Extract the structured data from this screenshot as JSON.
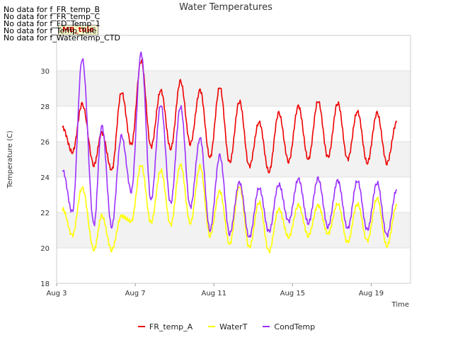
{
  "no_data_messages": [
    "No data for f_FR_temp_B",
    "No data for f_FR_temp_C",
    "No data for f_FD_Temp_1",
    "No data for f_Temp_Tule",
    "No data for f_WaterTemp_CTD"
  ],
  "annotation": "MB_tule",
  "chart_data": {
    "type": "line",
    "title": "Water Temperatures",
    "xlabel": "Time",
    "ylabel": "Temperature (C)",
    "xlim": [
      3,
      21
    ],
    "ylim": [
      18,
      32
    ],
    "x_ticks": [
      3,
      7,
      11,
      15,
      19
    ],
    "x_tick_labels": [
      "Aug 3",
      "Aug 7",
      "Aug 11",
      "Aug 15",
      "Aug 19"
    ],
    "y_ticks": [
      18,
      20,
      22,
      24,
      26,
      28,
      30
    ],
    "y_tick_labels": [
      "18",
      "20",
      "22",
      "24",
      "26",
      "28",
      "30"
    ],
    "grid": true,
    "legend_position": "bottom-center",
    "series": [
      {
        "name": "FR_temp_A",
        "color": "#ee0000",
        "x": [
          3.3,
          3.8,
          4.3,
          4.9,
          5.3,
          5.8,
          6.3,
          6.8,
          7.3,
          7.8,
          8.3,
          8.8,
          9.3,
          9.8,
          10.3,
          10.8,
          11.3,
          11.8,
          12.3,
          12.8,
          13.3,
          13.8,
          14.3,
          14.8,
          15.3,
          15.8,
          16.3,
          16.8,
          17.3,
          17.8,
          18.3,
          18.8,
          19.3,
          19.8,
          20.3
        ],
        "y": [
          26.8,
          25.4,
          28.1,
          24.7,
          26.5,
          24.4,
          28.8,
          25.8,
          30.6,
          25.7,
          28.9,
          25.6,
          29.4,
          25.9,
          28.9,
          25.1,
          29.1,
          24.8,
          28.3,
          24.6,
          27.1,
          24.3,
          27.6,
          24.9,
          28.0,
          25.0,
          28.3,
          25.1,
          28.2,
          25.0,
          27.7,
          24.8,
          27.6,
          24.8,
          27.1
        ]
      },
      {
        "name": "WaterT",
        "color": "#ffff00",
        "x": [
          3.3,
          3.8,
          4.3,
          4.9,
          5.3,
          5.8,
          6.3,
          6.8,
          7.3,
          7.8,
          8.3,
          8.8,
          9.3,
          9.8,
          10.3,
          10.8,
          11.3,
          11.8,
          12.3,
          12.8,
          13.3,
          13.8,
          14.3,
          14.8,
          15.3,
          15.8,
          16.3,
          16.8,
          17.3,
          17.8,
          18.3,
          18.8,
          19.3,
          19.8,
          20.3
        ],
        "y": [
          22.2,
          20.7,
          23.4,
          19.9,
          21.8,
          19.9,
          21.8,
          21.5,
          24.7,
          21.4,
          24.4,
          21.3,
          24.7,
          21.4,
          24.6,
          20.7,
          23.2,
          20.2,
          23.5,
          20.0,
          22.6,
          19.8,
          22.2,
          20.6,
          22.4,
          20.7,
          22.4,
          20.8,
          22.5,
          20.3,
          22.5,
          20.4,
          22.8,
          20.1,
          22.4
        ]
      },
      {
        "name": "CondTemp",
        "color": "#9b30ff",
        "x": [
          3.3,
          3.8,
          4.3,
          4.9,
          5.3,
          5.8,
          6.3,
          6.8,
          7.3,
          7.8,
          8.3,
          8.8,
          9.3,
          9.8,
          10.3,
          10.8,
          11.3,
          11.8,
          12.3,
          12.8,
          13.3,
          13.8,
          14.3,
          14.8,
          15.3,
          15.8,
          16.3,
          16.8,
          17.3,
          17.8,
          18.3,
          18.8,
          19.3,
          19.8,
          20.3
        ],
        "y": [
          24.4,
          22.0,
          30.7,
          21.3,
          26.9,
          21.2,
          26.3,
          23.2,
          31.0,
          22.7,
          28.1,
          22.5,
          28.0,
          22.3,
          26.2,
          21.0,
          25.2,
          20.8,
          23.7,
          20.6,
          23.4,
          20.9,
          23.6,
          21.5,
          23.9,
          21.4,
          23.9,
          21.2,
          23.8,
          21.1,
          23.8,
          21.0,
          23.7,
          20.7,
          23.3
        ]
      }
    ]
  }
}
